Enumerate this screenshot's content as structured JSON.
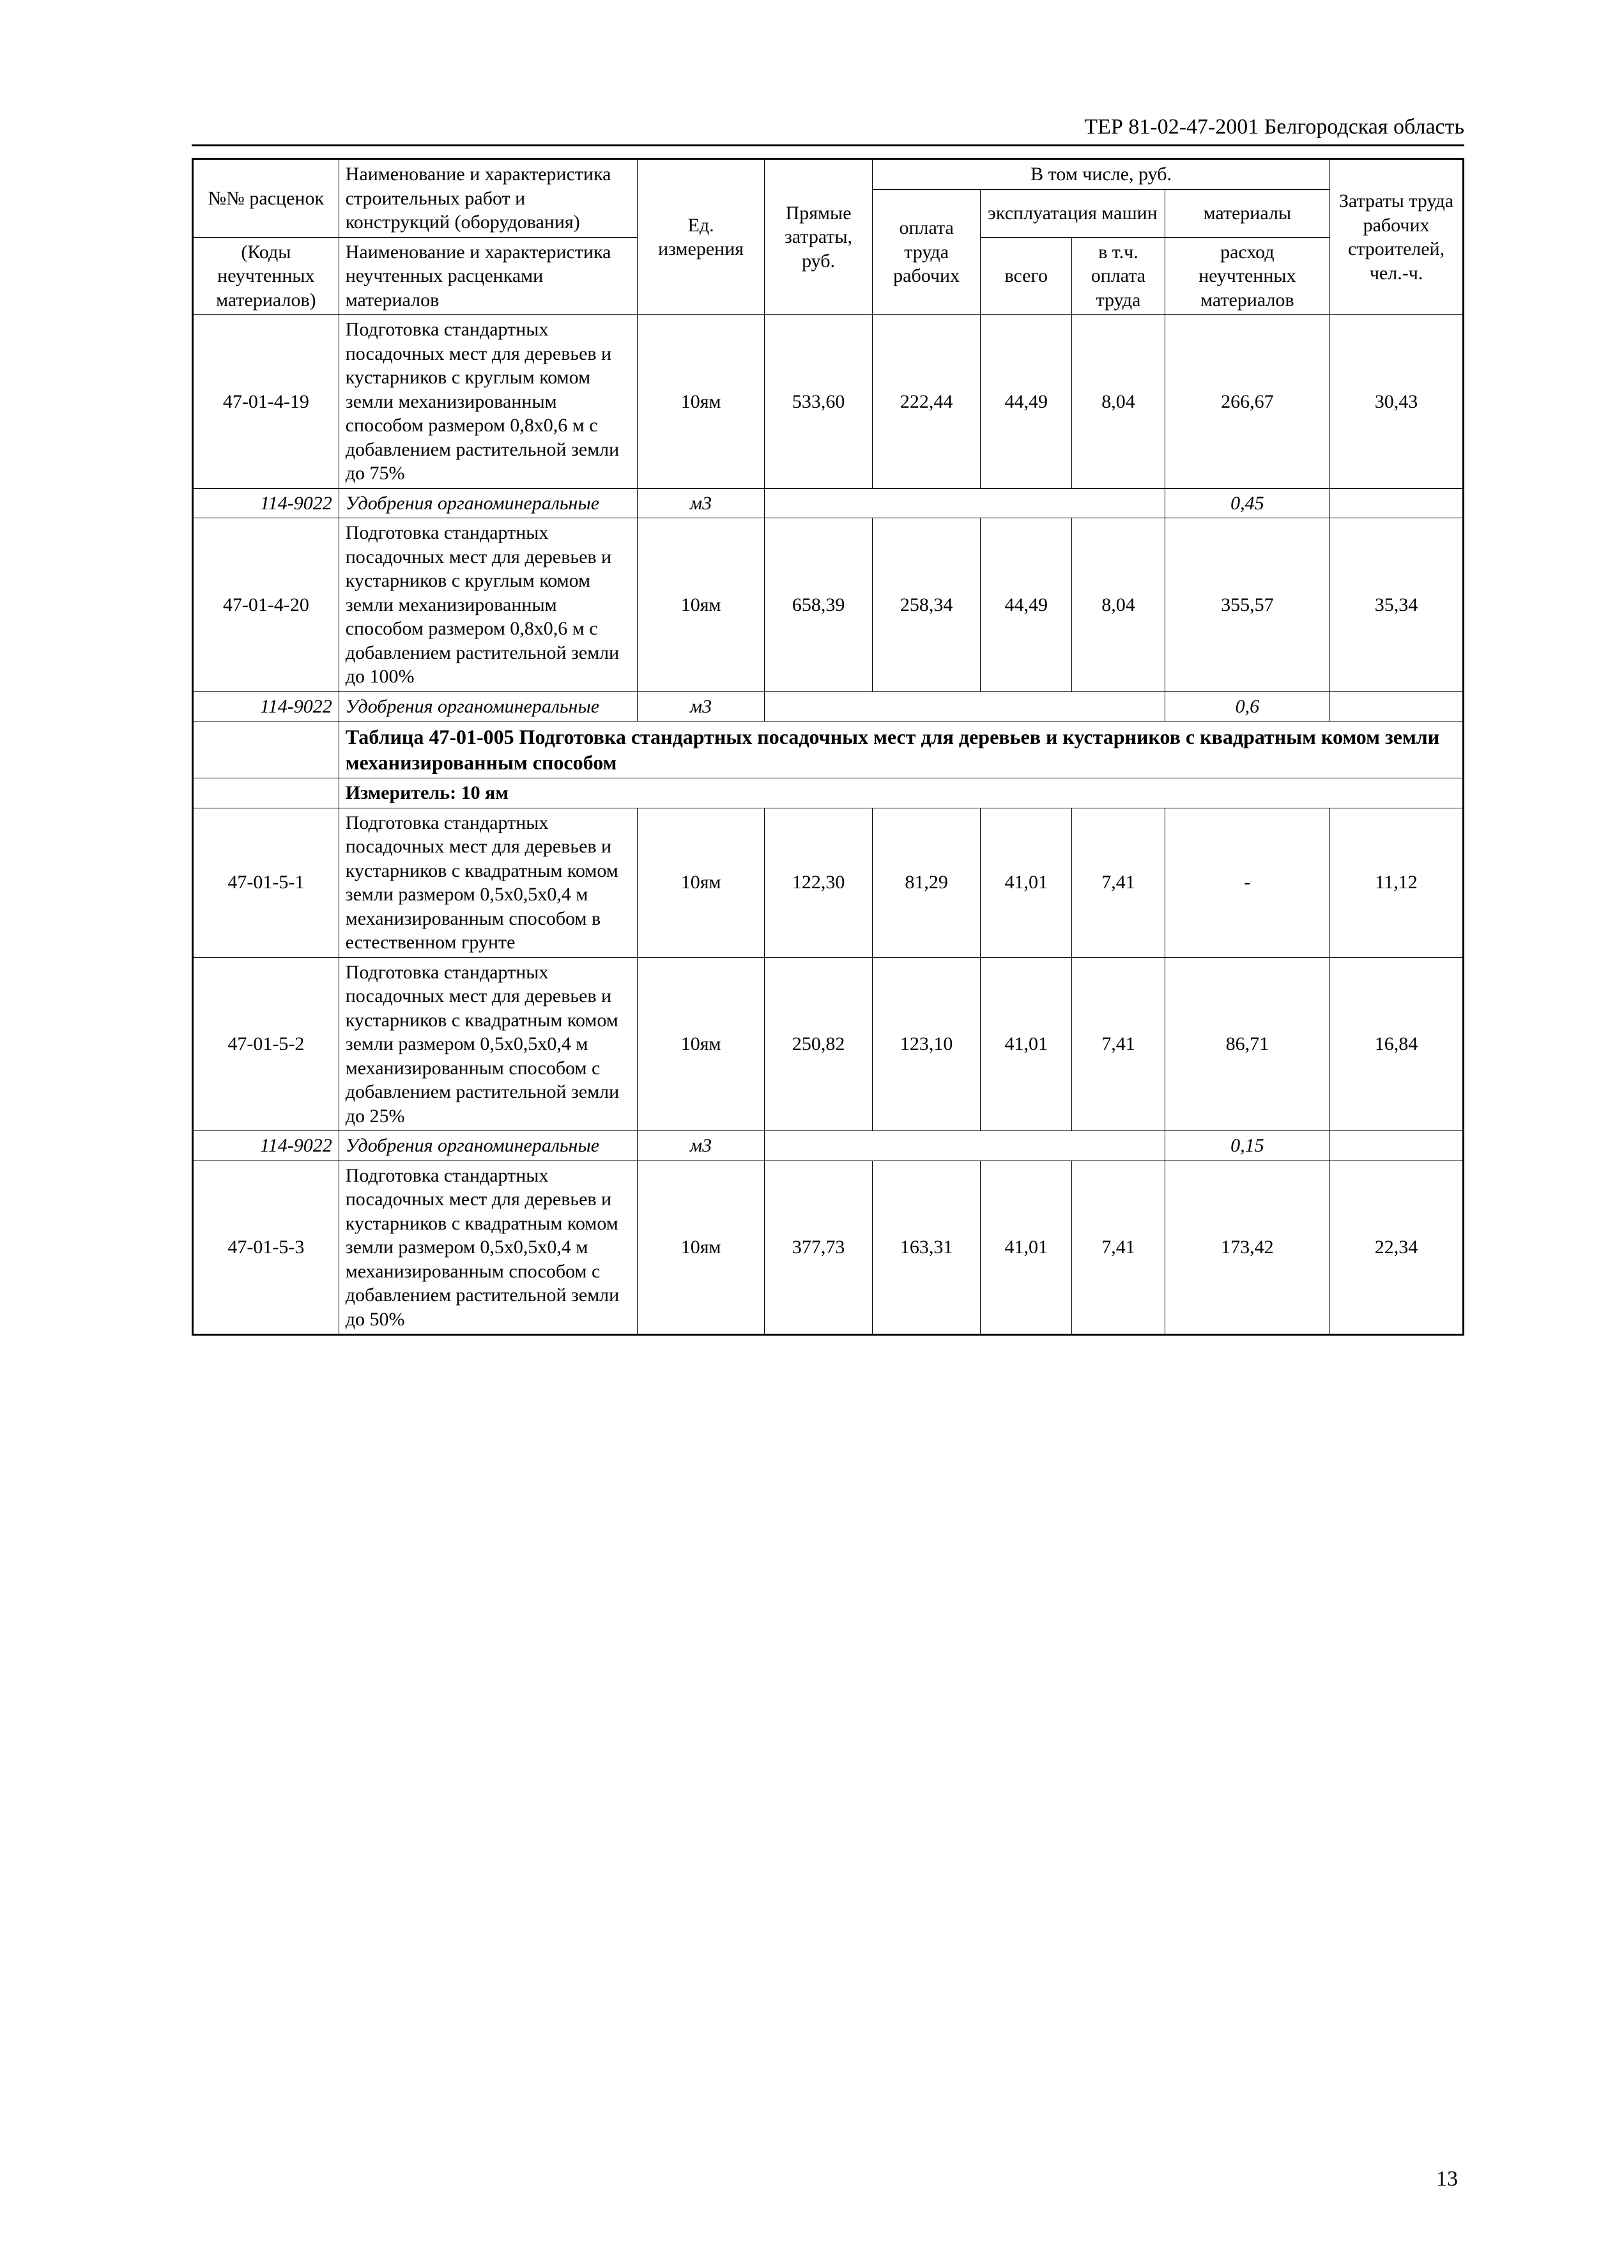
{
  "header": {
    "title": "ТЕР 81-02-47-2001  Белгородская область"
  },
  "columns": {
    "code": "№№ расценок",
    "code_sub": "(Коды неучтенных материалов)",
    "name": "Наименование и характеристика строительных работ и конструкций (оборудования)",
    "name_sub": "Наименование и характеристика неучтенных расценками материалов",
    "unit": "Ед. измерения",
    "direct": "Прямые затраты, руб.",
    "including": "В том числе, руб.",
    "oplata": "оплата труда рабочих",
    "expl": "эксплуатация машин",
    "vsego": "всего",
    "vtch": "в т.ч. оплата труда",
    "materials": "материалы",
    "materials_sub": "расход неучтенных материалов",
    "labor": "Затраты труда рабочих строителей, чел.-ч."
  },
  "rows": [
    {
      "code": "47-01-4-19",
      "name": "Подготовка стандартных посадочных мест для деревьев и кустарников с круглым комом земли механизированным способом размером 0,8х0,6 м с добавлением растительной земли до 75%",
      "unit": "10ям",
      "direct": "533,60",
      "oplata": "222,44",
      "vsego": "44,49",
      "vtch": "8,04",
      "mat": "266,67",
      "labor": "30,43"
    },
    {
      "code": "114-9022",
      "name": "Удобрения органоминеральные",
      "unit": "м3",
      "mat": "0,45",
      "italic": true,
      "merged": true
    },
    {
      "code": "47-01-4-20",
      "name": "Подготовка стандартных посадочных мест для деревьев и кустарников с круглым комом земли механизированным способом размером 0,8х0,6 м с добавлением растительной земли до 100%",
      "unit": "10ям",
      "direct": "658,39",
      "oplata": "258,34",
      "vsego": "44,49",
      "vtch": "8,04",
      "mat": "355,57",
      "labor": "35,34"
    },
    {
      "code": "114-9022",
      "name": "Удобрения органоминеральные",
      "unit": "м3",
      "mat": "0,6",
      "italic": true,
      "merged": true
    }
  ],
  "section": {
    "title": "Таблица 47-01-005 Подготовка стандартных посадочных мест для деревьев и кустарников с квадратным комом земли механизированным способом",
    "measure": "Измеритель: 10 ям"
  },
  "rows2": [
    {
      "code": "47-01-5-1",
      "name": "Подготовка стандартных посадочных мест для деревьев и кустарников с квадратным комом земли размером 0,5х0,5х0,4 м механизированным способом в естественном грунте",
      "unit": "10ям",
      "direct": "122,30",
      "oplata": "81,29",
      "vsego": "41,01",
      "vtch": "7,41",
      "mat": "-",
      "labor": "11,12"
    },
    {
      "code": "47-01-5-2",
      "name": "Подготовка стандартных посадочных мест для деревьев и кустарников с квадратным комом земли размером 0,5х0,5х0,4 м механизированным способом с добавлением растительной земли до 25%",
      "unit": "10ям",
      "direct": "250,82",
      "oplata": "123,10",
      "vsego": "41,01",
      "vtch": "7,41",
      "mat": "86,71",
      "labor": "16,84"
    },
    {
      "code": "114-9022",
      "name": "Удобрения органоминеральные",
      "unit": "м3",
      "mat": "0,15",
      "italic": true,
      "merged": true
    },
    {
      "code": "47-01-5-3",
      "name": "Подготовка стандартных посадочных мест для деревьев и кустарников с квадратным комом земли размером 0,5х0,5х0,4 м механизированным способом с добавлением растительной земли до 50%",
      "unit": "10ям",
      "direct": "377,73",
      "oplata": "163,31",
      "vsego": "41,01",
      "vtch": "7,41",
      "mat": "173,42",
      "labor": "22,34"
    }
  ],
  "page_number": "13"
}
